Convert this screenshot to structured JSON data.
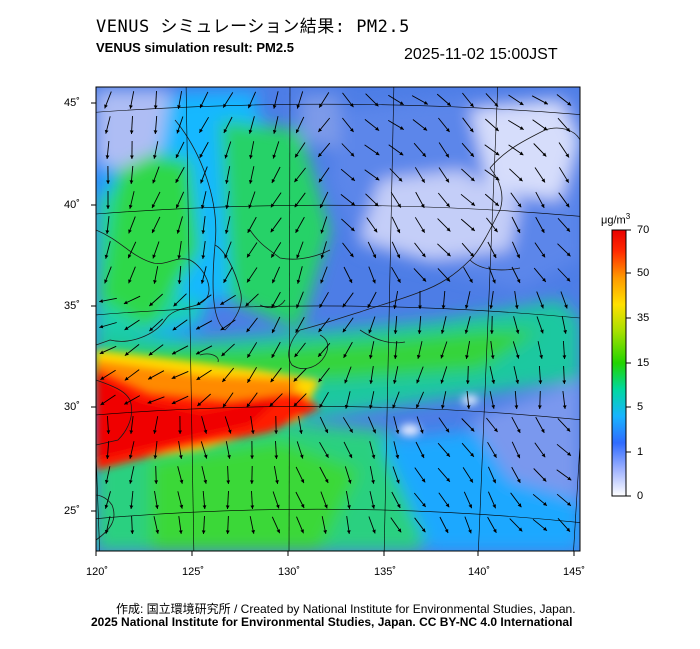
{
  "header": {
    "title_jp": "VENUS シミュレーション結果: PM2.5",
    "title_en": "VENUS simulation result: PM2.5",
    "timestamp": "2025-11-02 15:00JST"
  },
  "map": {
    "lat_labels": [
      "45˚",
      "40˚",
      "35˚",
      "30˚",
      "25˚"
    ],
    "lon_labels": [
      "120˚",
      "125˚",
      "130˚",
      "135˚",
      "140˚",
      "145˚"
    ],
    "colors": {
      "ocean": "#4d7de6",
      "land_low": "#c8d2f8",
      "haze_high": "#ff1a00",
      "mid": "#22cc44"
    }
  },
  "colorbar": {
    "unit": "μg/m",
    "unit_sup": "3",
    "labels": [
      "70",
      "50",
      "35",
      "15",
      "5",
      "1",
      "0"
    ],
    "stops": [
      "#ffffff",
      "#9fb2ff",
      "#2f6bff",
      "#18b4ff",
      "#00d8a0",
      "#22d400",
      "#a8e000",
      "#ffe000",
      "#ff9a00",
      "#ff2a00",
      "#e80000"
    ]
  },
  "footer": {
    "credit": "作成: 国立環境研究所 / Created by National Institute for Environmental Studies, Japan.",
    "copyright": "2025 National Institute for Environmental Studies, Japan. CC BY-NC 4.0 International"
  }
}
